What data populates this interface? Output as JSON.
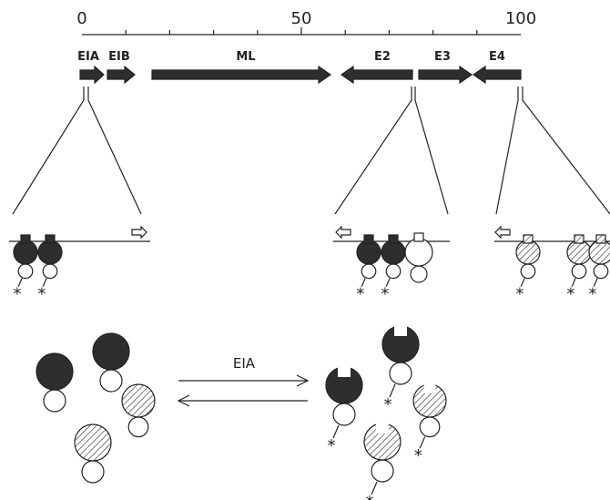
{
  "scale": {
    "labels": [
      "0",
      "50",
      "100"
    ]
  },
  "genes": [
    "EIA",
    "EIB",
    "ML",
    "E2",
    "E3",
    "E4"
  ],
  "reaction": {
    "label": "EIA"
  },
  "marker": "*"
}
